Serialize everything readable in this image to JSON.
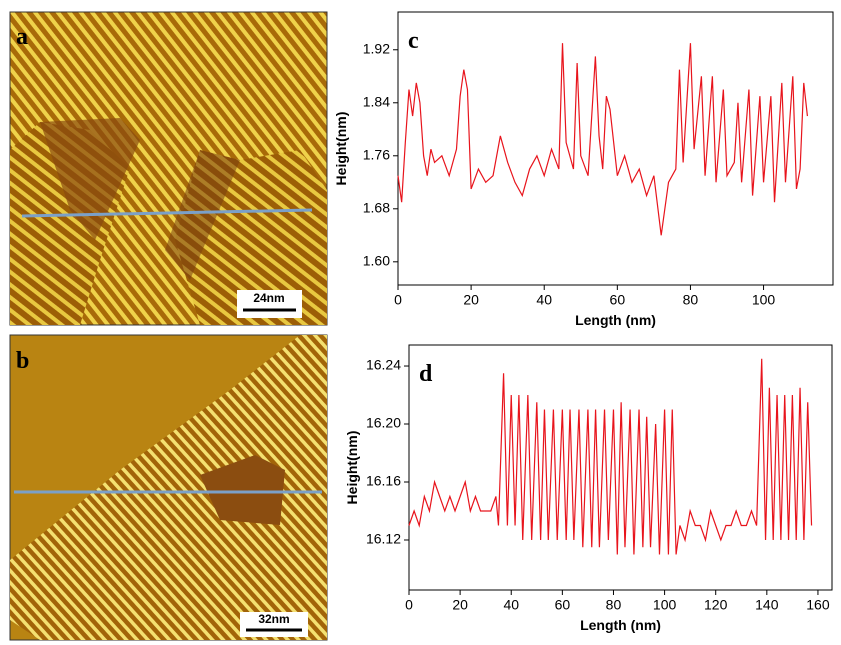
{
  "images": [
    {
      "label": "a",
      "scale_bar": "24nm"
    },
    {
      "label": "b",
      "scale_bar": "32nm"
    }
  ],
  "chart_data": [
    {
      "type": "line",
      "label": "c",
      "ylabel": "Height(nm)",
      "xlabel": "Length (nm)",
      "xlim": [
        0,
        119
      ],
      "ylim": [
        1.565,
        1.977
      ],
      "xticks": [
        0,
        20,
        40,
        60,
        80,
        100
      ],
      "yticks": [
        {
          "value": 1.6,
          "label": "1.60"
        },
        1.68,
        1.76,
        1.84,
        1.92
      ],
      "x": [
        0,
        1,
        2,
        3,
        4,
        5,
        6,
        7,
        8,
        9,
        10,
        12,
        14,
        16,
        17,
        18,
        19,
        20,
        22,
        24,
        26,
        28,
        30,
        32,
        34,
        36,
        38,
        40,
        42,
        44,
        45,
        46,
        48,
        49,
        50,
        52,
        54,
        55,
        56,
        57,
        58,
        60,
        62,
        64,
        66,
        68,
        70,
        72,
        74,
        76,
        77,
        78,
        80,
        81,
        83,
        84,
        86,
        87,
        89,
        90,
        92,
        93,
        94,
        96,
        97,
        99,
        100,
        102,
        103,
        105,
        106,
        108,
        109,
        110,
        111,
        112
      ],
      "series": [
        {
          "color": "#e8141c",
          "values": [
            1.73,
            1.69,
            1.78,
            1.86,
            1.82,
            1.87,
            1.84,
            1.76,
            1.73,
            1.77,
            1.75,
            1.76,
            1.73,
            1.77,
            1.85,
            1.89,
            1.86,
            1.71,
            1.74,
            1.72,
            1.73,
            1.79,
            1.75,
            1.72,
            1.7,
            1.74,
            1.76,
            1.73,
            1.77,
            1.74,
            1.93,
            1.78,
            1.74,
            1.9,
            1.76,
            1.73,
            1.91,
            1.79,
            1.74,
            1.85,
            1.83,
            1.73,
            1.76,
            1.72,
            1.74,
            1.7,
            1.73,
            1.64,
            1.72,
            1.74,
            1.89,
            1.75,
            1.93,
            1.77,
            1.88,
            1.73,
            1.88,
            1.72,
            1.86,
            1.73,
            1.75,
            1.84,
            1.72,
            1.86,
            1.7,
            1.85,
            1.72,
            1.85,
            1.69,
            1.87,
            1.72,
            1.88,
            1.71,
            1.74,
            1.87,
            1.82
          ]
        }
      ]
    },
    {
      "type": "line",
      "label": "d",
      "ylabel": "Height(nm)",
      "xlabel": "Length (nm)",
      "xlim": [
        0,
        165.5
      ],
      "ylim": [
        16.0855,
        16.2545
      ],
      "xticks": [
        0,
        20,
        40,
        60,
        80,
        100,
        120,
        140,
        160
      ],
      "yticks": [
        16.12,
        16.16,
        {
          "value": 16.2,
          "label": "16.20"
        },
        16.24
      ],
      "x": [
        0,
        2,
        4,
        6,
        8,
        10,
        12,
        14,
        16,
        18,
        20,
        22,
        24,
        26,
        28,
        30,
        32,
        34,
        35,
        37,
        38.5,
        40,
        41.5,
        43,
        44.5,
        46.5,
        48,
        50,
        51.5,
        53,
        54.5,
        56.5,
        58,
        60,
        61.5,
        63,
        64.5,
        66.5,
        68,
        70,
        71.5,
        73,
        74.5,
        76.5,
        78,
        80,
        81.5,
        83,
        84.5,
        86.5,
        88,
        90,
        91.5,
        93,
        94.5,
        96.5,
        98,
        100,
        101.5,
        103,
        104.5,
        106,
        108,
        110,
        112,
        114,
        116,
        118,
        120,
        122,
        124,
        126,
        128,
        130,
        132,
        134,
        136,
        138,
        139.5,
        141,
        142.5,
        144,
        145.5,
        147,
        148.5,
        150,
        151.5,
        153,
        154.5,
        156,
        157.5
      ],
      "series": [
        {
          "color": "#e8141c",
          "values": [
            16.13,
            16.14,
            16.13,
            16.15,
            16.14,
            16.16,
            16.15,
            16.14,
            16.15,
            16.14,
            16.15,
            16.16,
            16.14,
            16.15,
            16.14,
            16.14,
            16.14,
            16.15,
            16.13,
            16.235,
            16.13,
            16.22,
            16.13,
            16.22,
            16.12,
            16.22,
            16.12,
            16.215,
            16.12,
            16.21,
            16.12,
            16.21,
            16.12,
            16.21,
            16.12,
            16.21,
            16.12,
            16.21,
            16.115,
            16.21,
            16.115,
            16.21,
            16.115,
            16.21,
            16.12,
            16.21,
            16.11,
            16.215,
            16.115,
            16.21,
            16.11,
            16.21,
            16.115,
            16.205,
            16.115,
            16.2,
            16.11,
            16.21,
            16.11,
            16.21,
            16.11,
            16.13,
            16.12,
            16.14,
            16.13,
            16.13,
            16.12,
            16.14,
            16.13,
            16.12,
            16.13,
            16.13,
            16.14,
            16.13,
            16.13,
            16.14,
            16.13,
            16.245,
            16.12,
            16.225,
            16.12,
            16.22,
            16.12,
            16.22,
            16.12,
            16.22,
            16.12,
            16.225,
            16.12,
            16.215,
            16.13
          ]
        }
      ]
    }
  ]
}
